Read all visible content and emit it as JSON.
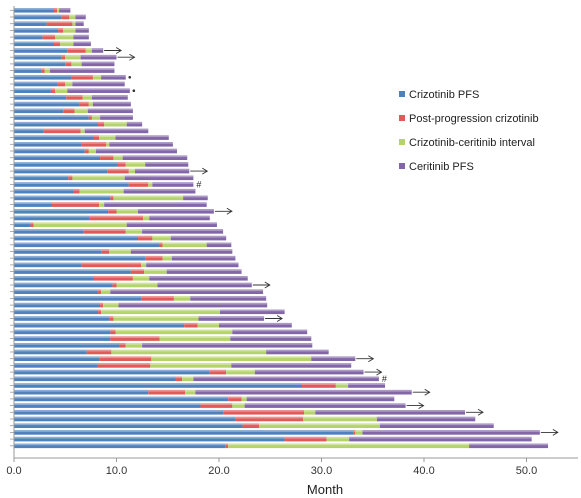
{
  "chart_data": {
    "type": "bar",
    "orientation": "horizontal-stacked",
    "xlabel": "Month",
    "xlim": [
      0,
      55
    ],
    "xticks": [
      "0.0",
      "10.0",
      "20.0",
      "30.0",
      "40.0",
      "50.0"
    ],
    "grid": false,
    "legend_position": "right",
    "series": [
      {
        "name": "Crizotinib PFS",
        "color": "#4f81bd"
      },
      {
        "name": "Post-progression crizotinib",
        "color": "#e05a5a"
      },
      {
        "name": "Crizotinib-ceritinib interval",
        "color": "#b5d36b"
      },
      {
        "name": "Ceritinib PFS",
        "color": "#8266a8"
      }
    ],
    "patients": [
      {
        "segments": [
          3.9,
          0.3,
          0.2,
          1.1
        ],
        "marker": ""
      },
      {
        "segments": [
          4.6,
          0.8,
          0.6,
          1.0
        ],
        "marker": ""
      },
      {
        "segments": [
          3.2,
          2.5,
          0.3,
          0.8
        ],
        "marker": ""
      },
      {
        "segments": [
          4.3,
          0.5,
          1.2,
          1.3
        ],
        "marker": ""
      },
      {
        "segments": [
          2.8,
          1.2,
          1.8,
          1.5
        ],
        "marker": ""
      },
      {
        "segments": [
          3.9,
          0.6,
          1.3,
          1.7
        ],
        "marker": ""
      },
      {
        "segments": [
          5.2,
          1.8,
          0.6,
          1.1
        ],
        "marker": "arrow"
      },
      {
        "segments": [
          4.6,
          0.4,
          1.5,
          3.5
        ],
        "marker": "arrow"
      },
      {
        "segments": [
          5.0,
          0.6,
          1.0,
          3.2
        ],
        "marker": ""
      },
      {
        "segments": [
          2.7,
          0.3,
          0.5,
          6.3
        ],
        "marker": ""
      },
      {
        "segments": [
          5.6,
          2.1,
          0.8,
          2.4
        ],
        "marker": "dot"
      },
      {
        "segments": [
          4.2,
          0.8,
          0.7,
          5.1
        ],
        "marker": ""
      },
      {
        "segments": [
          3.6,
          0.4,
          1.2,
          6.1
        ],
        "marker": "dot"
      },
      {
        "segments": [
          5.1,
          1.6,
          0.9,
          3.5
        ],
        "marker": ""
      },
      {
        "segments": [
          6.4,
          0.9,
          0.4,
          3.7
        ],
        "marker": ""
      },
      {
        "segments": [
          4.8,
          1.1,
          1.3,
          4.4
        ],
        "marker": ""
      },
      {
        "segments": [
          7.3,
          0.3,
          0.8,
          3.2
        ],
        "marker": ""
      },
      {
        "segments": [
          8.2,
          0.6,
          2.2,
          1.5
        ],
        "marker": ""
      },
      {
        "segments": [
          2.9,
          3.6,
          0.4,
          6.2
        ],
        "marker": ""
      },
      {
        "segments": [
          7.8,
          0.5,
          1.6,
          5.2
        ],
        "marker": ""
      },
      {
        "segments": [
          6.6,
          2.4,
          0.3,
          6.2
        ],
        "marker": ""
      },
      {
        "segments": [
          6.9,
          0.4,
          0.7,
          7.9
        ],
        "marker": ""
      },
      {
        "segments": [
          8.4,
          1.3,
          0.9,
          6.3
        ],
        "marker": ""
      },
      {
        "segments": [
          10.1,
          0.8,
          1.9,
          4.2
        ],
        "marker": ""
      },
      {
        "segments": [
          9.1,
          2.1,
          0.6,
          5.3
        ],
        "marker": "arrow"
      },
      {
        "segments": [
          5.3,
          0.4,
          5.1,
          6.7
        ],
        "marker": ""
      },
      {
        "segments": [
          11.2,
          1.9,
          0.4,
          4.0
        ],
        "marker": "hash"
      },
      {
        "segments": [
          5.8,
          0.6,
          4.3,
          7.0
        ],
        "marker": ""
      },
      {
        "segments": [
          9.4,
          0.3,
          6.8,
          2.4
        ],
        "marker": ""
      },
      {
        "segments": [
          3.7,
          4.6,
          0.5,
          10.0
        ],
        "marker": ""
      },
      {
        "segments": [
          9.2,
          0.8,
          2.1,
          7.4
        ],
        "marker": "arrow"
      },
      {
        "segments": [
          7.4,
          5.2,
          0.6,
          5.9
        ],
        "marker": ""
      },
      {
        "segments": [
          1.6,
          0.3,
          9.1,
          8.8
        ],
        "marker": ""
      },
      {
        "segments": [
          6.8,
          4.1,
          1.6,
          7.9
        ],
        "marker": ""
      },
      {
        "segments": [
          12.1,
          1.4,
          1.8,
          5.4
        ],
        "marker": ""
      },
      {
        "segments": [
          14.2,
          0.3,
          4.3,
          2.4
        ],
        "marker": ""
      },
      {
        "segments": [
          8.5,
          0.8,
          2.1,
          9.9
        ],
        "marker": ""
      },
      {
        "segments": [
          12.8,
          1.7,
          0.9,
          6.2
        ],
        "marker": ""
      },
      {
        "segments": [
          6.6,
          5.8,
          0.5,
          9.0
        ],
        "marker": ""
      },
      {
        "segments": [
          11.4,
          1.3,
          2.2,
          7.3
        ],
        "marker": ""
      },
      {
        "segments": [
          7.8,
          3.8,
          1.6,
          9.6
        ],
        "marker": ""
      },
      {
        "segments": [
          9.6,
          0.4,
          4.0,
          9.2
        ],
        "marker": "arrow"
      },
      {
        "segments": [
          8.1,
          0.4,
          0.9,
          14.9
        ],
        "marker": ""
      },
      {
        "segments": [
          12.4,
          3.2,
          1.6,
          7.4
        ],
        "marker": ""
      },
      {
        "segments": [
          8.4,
          0.3,
          1.5,
          14.5
        ],
        "marker": ""
      },
      {
        "segments": [
          8.2,
          0.3,
          11.6,
          6.3
        ],
        "marker": ""
      },
      {
        "segments": [
          9.3,
          0.4,
          8.3,
          6.4
        ],
        "marker": "arrow"
      },
      {
        "segments": [
          16.6,
          1.3,
          2.1,
          7.1
        ],
        "marker": ""
      },
      {
        "segments": [
          9.4,
          0.5,
          11.4,
          7.3
        ],
        "marker": ""
      },
      {
        "segments": [
          9.4,
          4.8,
          6.9,
          7.9
        ],
        "marker": ""
      },
      {
        "segments": [
          10.3,
          0.6,
          1.6,
          16.6
        ],
        "marker": ""
      },
      {
        "segments": [
          7.1,
          2.4,
          15.1,
          6.1
        ],
        "marker": ""
      },
      {
        "segments": [
          8.3,
          5.1,
          15.6,
          4.3
        ],
        "marker": "arrow"
      },
      {
        "segments": [
          8.1,
          5.2,
          7.9,
          11.7
        ],
        "marker": ""
      },
      {
        "segments": [
          19.1,
          1.6,
          2.8,
          10.6
        ],
        "marker": "arrow"
      },
      {
        "segments": [
          15.8,
          0.6,
          1.1,
          18.1
        ],
        "marker": "hash"
      },
      {
        "segments": [
          28.1,
          3.3,
          1.2,
          3.6
        ],
        "marker": ""
      },
      {
        "segments": [
          13.1,
          3.6,
          1.0,
          21.1
        ],
        "marker": "arrow"
      },
      {
        "segments": [
          20.9,
          1.3,
          0.5,
          14.4
        ],
        "marker": ""
      },
      {
        "segments": [
          18.2,
          3.1,
          1.2,
          15.7
        ],
        "marker": "arrow"
      },
      {
        "segments": [
          20.4,
          7.9,
          1.1,
          14.6
        ],
        "marker": "arrow"
      },
      {
        "segments": [
          21.6,
          6.6,
          7.2,
          9.6
        ],
        "marker": ""
      },
      {
        "segments": [
          22.3,
          1.6,
          11.8,
          11.1
        ],
        "marker": ""
      },
      {
        "segments": [
          33.1,
          0.2,
          0.7,
          17.3
        ],
        "marker": "arrow"
      },
      {
        "segments": [
          26.4,
          4.1,
          2.2,
          17.8
        ],
        "marker": ""
      },
      {
        "segments": [
          20.6,
          0.3,
          23.5,
          7.7
        ],
        "marker": ""
      }
    ]
  }
}
